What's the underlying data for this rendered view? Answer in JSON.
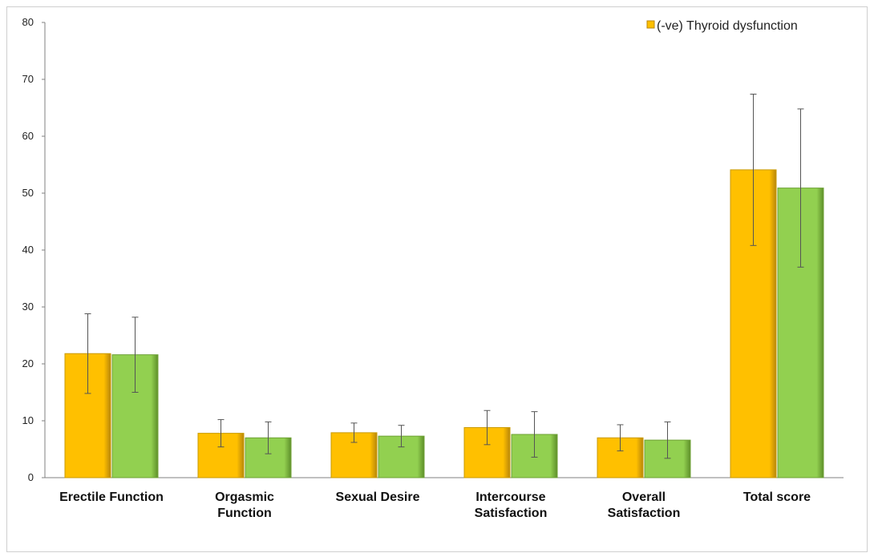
{
  "chart_data": {
    "type": "bar",
    "categories": [
      [
        "Erectile Function"
      ],
      [
        "Orgasmic",
        "Function"
      ],
      [
        "Sexual Desire"
      ],
      [
        "Intercourse",
        "Satisfaction"
      ],
      [
        "Overall",
        "Satisfaction"
      ],
      [
        "Total score"
      ]
    ],
    "series": [
      {
        "name": "(-ve) Thyroid dysfunction",
        "color": "#FFC000",
        "values": [
          21.8,
          7.8,
          7.9,
          8.8,
          7.0,
          54.1
        ],
        "error": [
          7.0,
          2.4,
          1.7,
          3.0,
          2.3,
          13.3
        ]
      },
      {
        "color": "#92D050",
        "values": [
          21.6,
          7.0,
          7.3,
          7.6,
          6.6,
          50.9
        ],
        "error": [
          6.6,
          2.8,
          1.9,
          4.0,
          3.2,
          13.9
        ]
      }
    ],
    "ylim": [
      0,
      80
    ],
    "yticks": [
      0,
      10,
      20,
      30,
      40,
      50,
      60,
      70,
      80
    ],
    "legend": "top-right",
    "grid": false
  }
}
